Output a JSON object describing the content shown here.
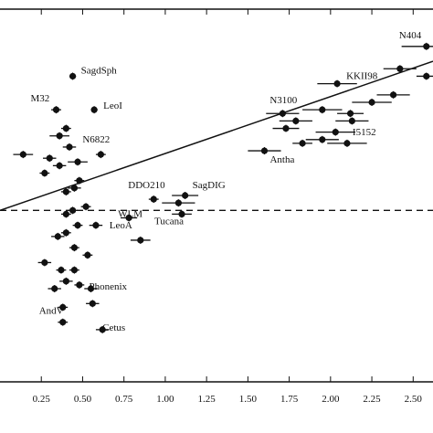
{
  "chart_data": {
    "type": "scatter",
    "title": "",
    "xlabel": "",
    "ylabel": "",
    "grid": false,
    "x_ticks": [
      "0.25",
      "0.50",
      "0.75",
      "1.00",
      "1.25",
      "1.50",
      "1.75",
      "2.00",
      "2.25",
      "2.50"
    ],
    "xlim": [
      0.0,
      2.62
    ],
    "ylim": [
      0,
      100
    ],
    "fit_line": {
      "x": [
        0.0,
        2.62
      ],
      "y": [
        46,
        86
      ]
    },
    "reference_line": {
      "y": 46,
      "style": "dashed"
    },
    "points": [
      {
        "label": "SagdSph",
        "x": 0.44,
        "y": 82,
        "xerr": 0.02
      },
      {
        "label": "M32",
        "x": 0.34,
        "y": 73,
        "xerr": 0.03
      },
      {
        "label": "LeoI",
        "x": 0.57,
        "y": 73,
        "xerr": 0.02
      },
      {
        "label": "",
        "x": 0.4,
        "y": 68,
        "xerr": 0.03
      },
      {
        "label": "",
        "x": 0.36,
        "y": 66,
        "xerr": 0.06
      },
      {
        "label": "",
        "x": 0.42,
        "y": 63,
        "xerr": 0.04
      },
      {
        "label": "",
        "x": 0.14,
        "y": 61,
        "xerr": 0.06
      },
      {
        "label": "",
        "x": 0.3,
        "y": 60,
        "xerr": 0.04
      },
      {
        "label": "N6822",
        "x": 0.61,
        "y": 61,
        "xerr": 0.03
      },
      {
        "label": "",
        "x": 0.47,
        "y": 59,
        "xerr": 0.06
      },
      {
        "label": "",
        "x": 0.36,
        "y": 58,
        "xerr": 0.04
      },
      {
        "label": "",
        "x": 0.27,
        "y": 56,
        "xerr": 0.03
      },
      {
        "label": "",
        "x": 0.48,
        "y": 54,
        "xerr": 0.03
      },
      {
        "label": "",
        "x": 0.45,
        "y": 52,
        "xerr": 0.04
      },
      {
        "label": "",
        "x": 0.4,
        "y": 51,
        "xerr": 0.03
      },
      {
        "label": "DDO210",
        "x": 0.93,
        "y": 49,
        "xerr": 0.03
      },
      {
        "label": "SagDIG",
        "x": 1.12,
        "y": 50,
        "xerr": 0.08
      },
      {
        "label": "",
        "x": 1.08,
        "y": 48,
        "xerr": 0.1
      },
      {
        "label": "",
        "x": 0.52,
        "y": 47,
        "xerr": 0.03
      },
      {
        "label": "",
        "x": 0.44,
        "y": 46,
        "xerr": 0.03
      },
      {
        "label": "",
        "x": 0.4,
        "y": 45,
        "xerr": 0.03
      },
      {
        "label": "WLM",
        "x": 0.78,
        "y": 44,
        "xerr": 0.05
      },
      {
        "label": "",
        "x": 0.47,
        "y": 42,
        "xerr": 0.03
      },
      {
        "label": "",
        "x": 0.58,
        "y": 42,
        "xerr": 0.04
      },
      {
        "label": "",
        "x": 0.4,
        "y": 40,
        "xerr": 0.03
      },
      {
        "label": "",
        "x": 0.35,
        "y": 39,
        "xerr": 0.04
      },
      {
        "label": "LeoA",
        "x": 0.85,
        "y": 38,
        "xerr": 0.06
      },
      {
        "label": "",
        "x": 0.45,
        "y": 36,
        "xerr": 0.03
      },
      {
        "label": "",
        "x": 0.53,
        "y": 34,
        "xerr": 0.03
      },
      {
        "label": "",
        "x": 0.27,
        "y": 32,
        "xerr": 0.04
      },
      {
        "label": "",
        "x": 0.37,
        "y": 30,
        "xerr": 0.03
      },
      {
        "label": "",
        "x": 0.45,
        "y": 30,
        "xerr": 0.03
      },
      {
        "label": "",
        "x": 0.4,
        "y": 27,
        "xerr": 0.04
      },
      {
        "label": "",
        "x": 0.33,
        "y": 25,
        "xerr": 0.04
      },
      {
        "label": "",
        "x": 0.48,
        "y": 26,
        "xerr": 0.03
      },
      {
        "label": "Phonenix",
        "x": 0.55,
        "y": 25,
        "xerr": 0.04
      },
      {
        "label": "",
        "x": 0.38,
        "y": 20,
        "xerr": 0.03
      },
      {
        "label": "",
        "x": 0.56,
        "y": 21,
        "xerr": 0.04
      },
      {
        "label": "AndV",
        "x": 0.38,
        "y": 16,
        "xerr": 0.03
      },
      {
        "label": "Cetus",
        "x": 0.62,
        "y": 14,
        "xerr": 0.04
      },
      {
        "label": "N404",
        "x": 2.58,
        "y": 90,
        "xerr": 0.15
      },
      {
        "label": "",
        "x": 2.42,
        "y": 84,
        "xerr": 0.1
      },
      {
        "label": "KKII98",
        "x": 2.04,
        "y": 80,
        "xerr": 0.12
      },
      {
        "label": "",
        "x": 2.58,
        "y": 82,
        "xerr": 0.06
      },
      {
        "label": "",
        "x": 2.38,
        "y": 77,
        "xerr": 0.1
      },
      {
        "label": "",
        "x": 2.25,
        "y": 75,
        "xerr": 0.12
      },
      {
        "label": "N3100",
        "x": 1.71,
        "y": 72,
        "xerr": 0.1
      },
      {
        "label": "",
        "x": 2.12,
        "y": 72,
        "xerr": 0.08
      },
      {
        "label": "",
        "x": 1.95,
        "y": 73,
        "xerr": 0.12
      },
      {
        "label": "",
        "x": 1.79,
        "y": 70,
        "xerr": 0.1
      },
      {
        "label": "",
        "x": 2.13,
        "y": 70,
        "xerr": 0.1
      },
      {
        "label": "",
        "x": 1.73,
        "y": 68,
        "xerr": 0.08
      },
      {
        "label": "",
        "x": 2.03,
        "y": 67,
        "xerr": 0.12
      },
      {
        "label": "",
        "x": 1.95,
        "y": 65,
        "xerr": 0.1
      },
      {
        "label": "I5152",
        "x": 2.1,
        "y": 64,
        "xerr": 0.12
      },
      {
        "label": "",
        "x": 1.83,
        "y": 64,
        "xerr": 0.06
      },
      {
        "label": "Antha",
        "x": 1.6,
        "y": 62,
        "xerr": 0.1
      },
      {
        "label": "Tucana",
        "x": 1.1,
        "y": 45,
        "xerr": 0.06
      }
    ]
  }
}
